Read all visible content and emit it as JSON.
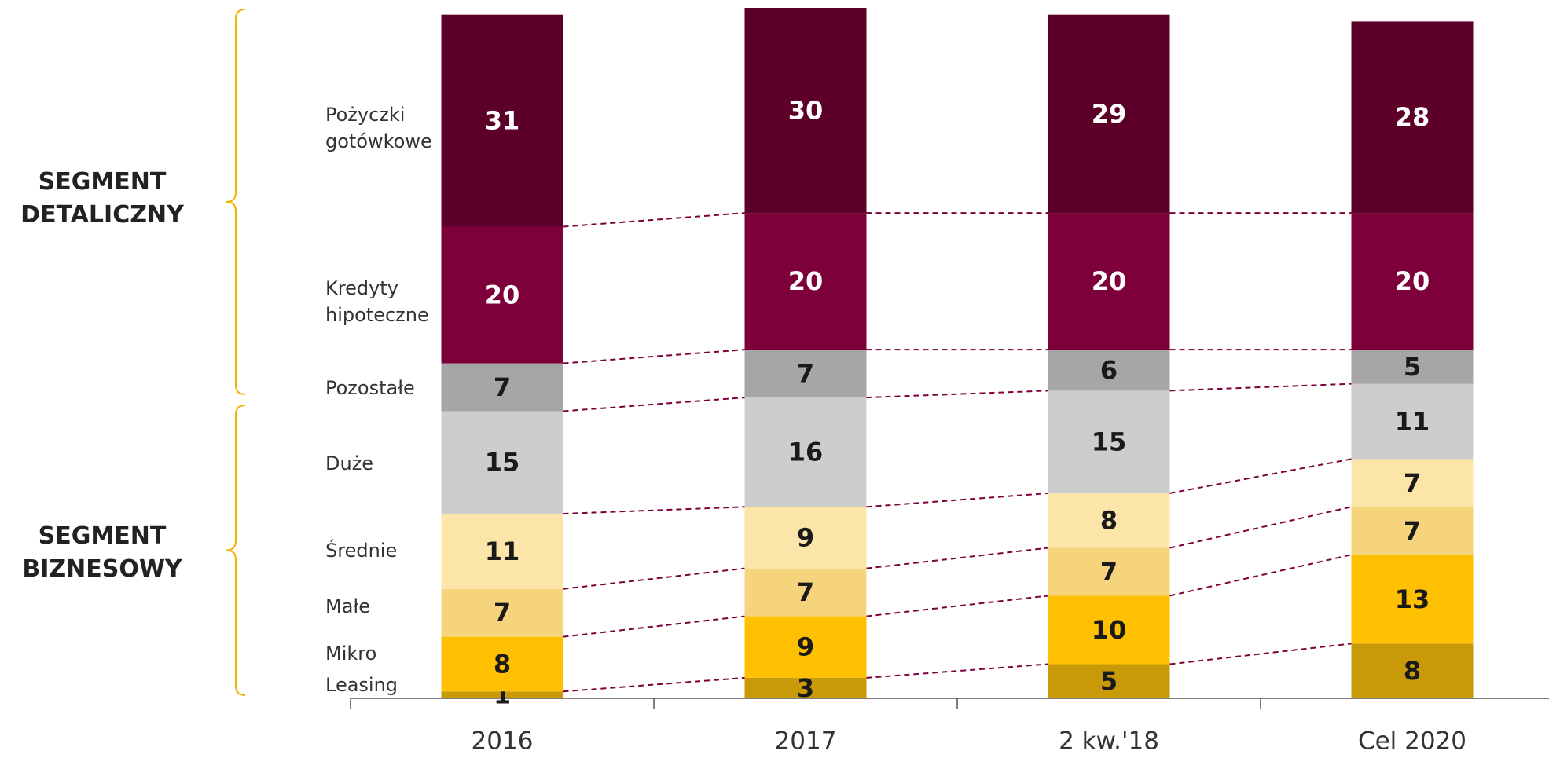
{
  "chart_data": {
    "type": "stacked_bar",
    "categories": [
      "2016",
      "2017",
      "2 kw.'18",
      "Cel 2020"
    ],
    "ylim": [
      0,
      101
    ],
    "connector_color": "#7e003a",
    "series": [
      {
        "name": "Leasing",
        "color": "#c89a0a",
        "label_color": "#1a1a1a",
        "values": [
          1,
          3,
          5,
          8
        ]
      },
      {
        "name": "Mikro",
        "color": "#fec000",
        "label_color": "#1a1a1a",
        "values": [
          8,
          9,
          10,
          13
        ]
      },
      {
        "name": "Małe",
        "color": "#f6d47b",
        "label_color": "#1a1a1a",
        "values": [
          7,
          7,
          7,
          7
        ]
      },
      {
        "name": "Średnie",
        "color": "#fbe5a9",
        "label_color": "#1a1a1a",
        "values": [
          11,
          9,
          8,
          7
        ]
      },
      {
        "name": "Duże",
        "color": "#cdcdcd",
        "label_color": "#1a1a1a",
        "values": [
          15,
          16,
          15,
          11
        ]
      },
      {
        "name": "Pozostałe",
        "color": "#a6a6a6",
        "label_color": "#1a1a1a",
        "values": [
          7,
          7,
          6,
          5
        ]
      },
      {
        "name": "Kredyty hipoteczne",
        "color": "#7e003a",
        "label_color": "#ffffff",
        "values": [
          20,
          20,
          20,
          20
        ]
      },
      {
        "name": "Pożyczki gotówkowe",
        "color": "#5c0029",
        "label_color": "#ffffff",
        "values": [
          31,
          30,
          29,
          28
        ]
      }
    ],
    "groups": [
      "SEGMENT DETALICZNY",
      "SEGMENT BIZNESOWY"
    ]
  }
}
